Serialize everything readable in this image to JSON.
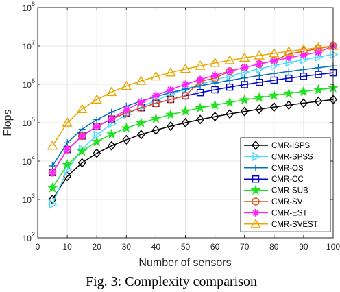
{
  "chart_data": {
    "type": "line",
    "x": [
      5,
      10,
      15,
      20,
      25,
      30,
      35,
      40,
      45,
      50,
      55,
      60,
      65,
      70,
      75,
      80,
      85,
      90,
      95,
      100
    ],
    "series": [
      {
        "name": "CMR-ISPS",
        "color": "#000000",
        "marker": "diamond-icon",
        "values": [
          1000,
          4000,
          9000,
          16000,
          25000,
          36000,
          49000,
          64000,
          81000,
          100000,
          121000,
          144000,
          169000,
          196000,
          225000,
          256000,
          289000,
          324000,
          361000,
          400000
        ]
      },
      {
        "name": "CMR-SPSS",
        "color": "#4dd9ff",
        "marker": "triangle-right-icon",
        "values": [
          750,
          6000,
          20250,
          48000,
          93750,
          162000,
          257250,
          384000,
          546750,
          750000,
          998250,
          1296000,
          1647750,
          2058000,
          2531250,
          3072000,
          3684750,
          4374000,
          5144250,
          6000000
        ]
      },
      {
        "name": "CMR-OS",
        "color": "#0072bd",
        "marker": "plus-icon",
        "values": [
          7500,
          30000,
          67500,
          120000,
          187500,
          270000,
          367500,
          480000,
          607500,
          750000,
          907500,
          1080000,
          1267500,
          1470000,
          1687500,
          1920000,
          2167500,
          2430000,
          2707500,
          3000000
        ]
      },
      {
        "name": "CMR-CC",
        "color": "#0000cc",
        "marker": "square-icon",
        "values": [
          5000,
          20000,
          45000,
          80000,
          125000,
          180000,
          245000,
          320000,
          405000,
          500000,
          605000,
          720000,
          845000,
          980000,
          1125000,
          1280000,
          1445000,
          1620000,
          1805000,
          2000000
        ]
      },
      {
        "name": "CMR-SUB",
        "color": "#22e022",
        "marker": "star-icon",
        "values": [
          2000,
          8000,
          18000,
          32000,
          50000,
          72000,
          98000,
          128000,
          162000,
          200000,
          242000,
          288000,
          338000,
          392000,
          450000,
          512000,
          578000,
          648000,
          722000,
          800000
        ]
      },
      {
        "name": "CMR-SV",
        "color": "#e8531f",
        "marker": "circle-icon",
        "values": [
          5000,
          20000,
          45000,
          80000,
          125000,
          180000,
          245000,
          320000,
          405000,
          500000,
          1210000,
          1440000,
          2197000,
          2744000,
          3375000,
          4096000,
          6141000,
          7290000,
          8574000,
          10000000
        ]
      },
      {
        "name": "CMR-EST",
        "color": "#ff20ff",
        "marker": "asterisk-icon",
        "values": [
          5000,
          20000,
          45000,
          80000,
          125000,
          216000,
          343000,
          512000,
          729000,
          1000000,
          1331000,
          1728000,
          2197000,
          2744000,
          3375000,
          4096000,
          4913000,
          5832000,
          6859000,
          10000000
        ]
      },
      {
        "name": "CMR-SVEST",
        "color": "#e8a800",
        "marker": "triangle-up-icon",
        "values": [
          25000,
          100000,
          225000,
          400000,
          625000,
          900000,
          1225000,
          1600000,
          2025000,
          2500000,
          3025000,
          3600000,
          4225000,
          4900000,
          5625000,
          6400000,
          7225000,
          8100000,
          9025000,
          10000000
        ]
      }
    ],
    "xlabel": "Number of sensors",
    "ylabel": "Flops",
    "xlim": [
      0,
      100
    ],
    "ylim": [
      100,
      100000000
    ],
    "yscale": "log",
    "x_ticks": [
      "0",
      "10",
      "20",
      "30",
      "40",
      "50",
      "60",
      "70",
      "80",
      "90",
      "100"
    ],
    "y_ticks": [
      {
        "base": "10",
        "exp": "2"
      },
      {
        "base": "10",
        "exp": "3"
      },
      {
        "base": "10",
        "exp": "4"
      },
      {
        "base": "10",
        "exp": "5"
      },
      {
        "base": "10",
        "exp": "6"
      },
      {
        "base": "10",
        "exp": "7"
      },
      {
        "base": "10",
        "exp": "8"
      }
    ],
    "grid": true,
    "legend_position": "bottom-right"
  },
  "caption": "Fig. 3: Complexity comparison"
}
